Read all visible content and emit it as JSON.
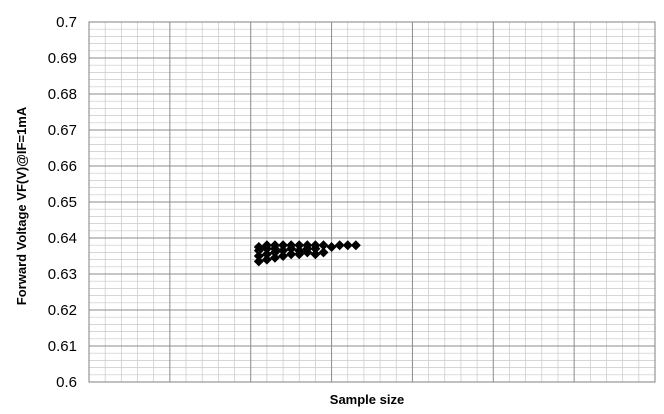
{
  "chart_data": {
    "type": "scatter",
    "title": "",
    "xlabel": "Sample size",
    "ylabel": "Forward Voltage VF(V)@IF=1mA",
    "ylim": [
      0.6,
      0.7
    ],
    "yticks": [
      "0.7",
      "0.69",
      "0.68",
      "0.67",
      "0.66",
      "0.65",
      "0.64",
      "0.63",
      "0.62",
      "0.61",
      "0.6"
    ],
    "xlim": [
      0,
      70
    ],
    "xticks_shown": false,
    "grid": true,
    "legend": false,
    "marker": "diamond",
    "marker_color": "#000000",
    "series": [
      {
        "x": [
          21,
          21,
          21,
          21,
          22,
          22,
          22,
          22,
          23,
          23,
          23,
          23,
          24,
          24,
          24,
          25,
          25,
          25,
          26,
          26,
          26,
          27,
          27,
          27,
          28,
          28,
          28,
          29,
          29,
          30,
          31,
          32,
          33
        ],
        "y": [
          0.6335,
          0.635,
          0.6365,
          0.6375,
          0.634,
          0.6355,
          0.637,
          0.638,
          0.6345,
          0.636,
          0.637,
          0.638,
          0.635,
          0.6365,
          0.638,
          0.6355,
          0.637,
          0.638,
          0.6355,
          0.6365,
          0.638,
          0.636,
          0.637,
          0.638,
          0.6355,
          0.637,
          0.638,
          0.636,
          0.638,
          0.6375,
          0.638,
          0.638,
          0.638
        ]
      }
    ]
  }
}
